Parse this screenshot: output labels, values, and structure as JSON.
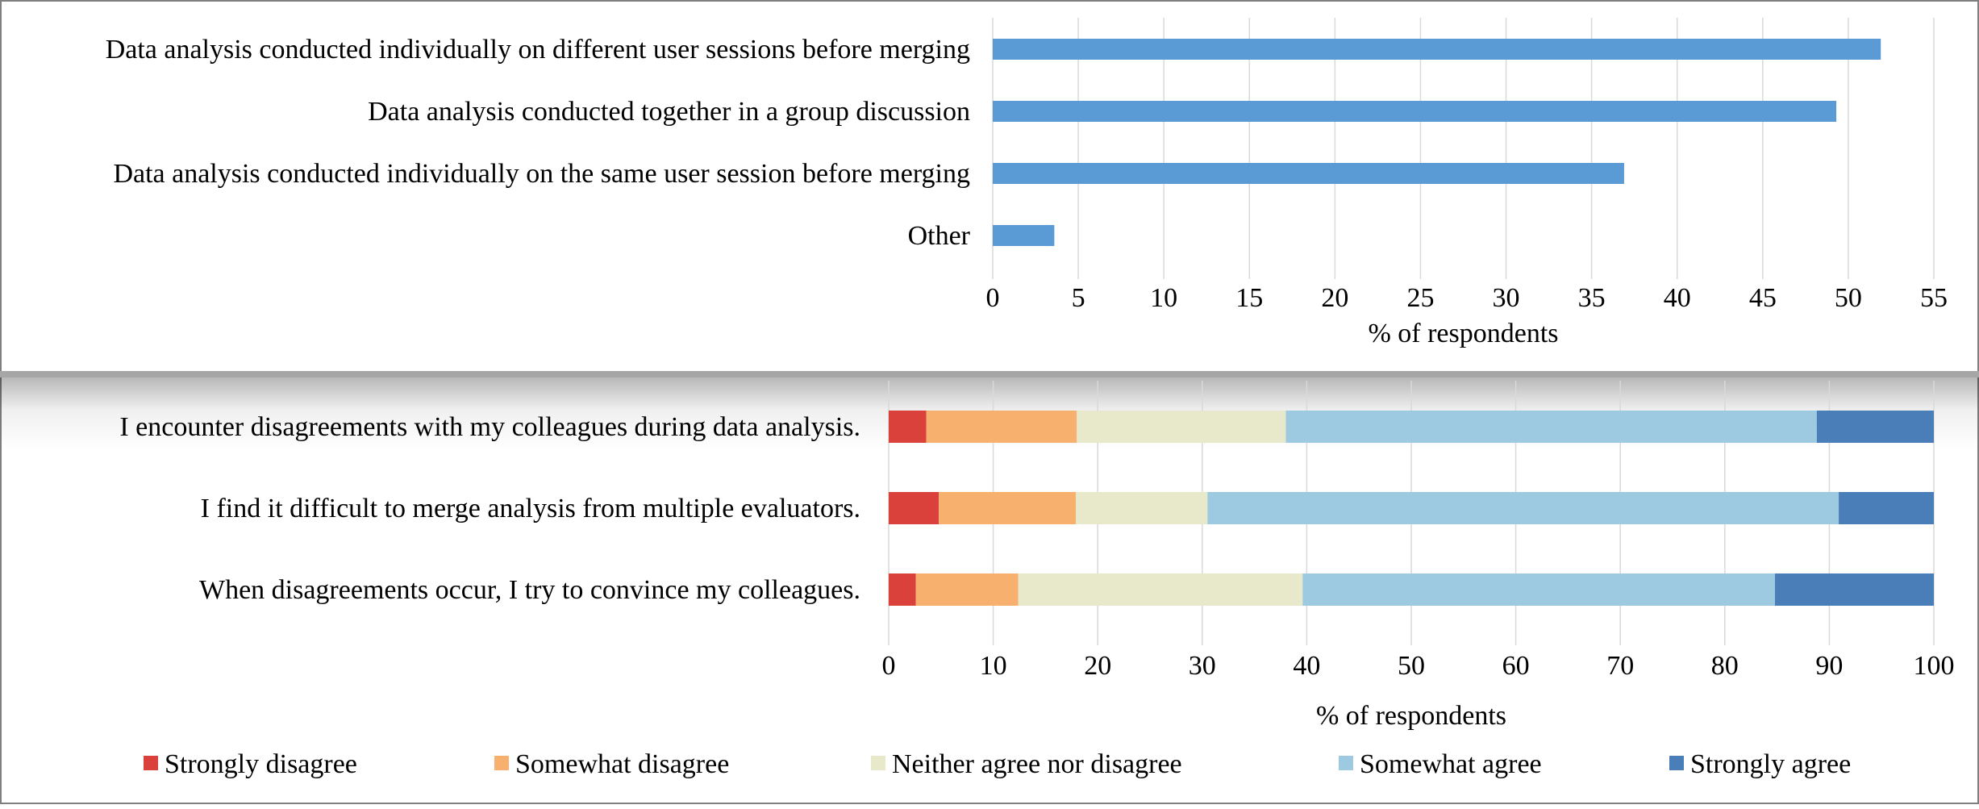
{
  "chart_data": [
    {
      "type": "bar",
      "orientation": "horizontal",
      "categories": [
        "Data analysis conducted individually on different user sessions before merging",
        "Data analysis conducted together in a group discussion",
        "Data analysis conducted individually on the same user session before merging",
        "Other"
      ],
      "values": [
        51.9,
        49.3,
        36.9,
        3.6
      ],
      "xlabel": "% of respondents",
      "xlim": [
        0,
        55
      ],
      "xticks": [
        "0",
        "5",
        "10",
        "15",
        "20",
        "25",
        "30",
        "35",
        "40",
        "45",
        "50",
        "55"
      ],
      "grid": true,
      "color": "#5b9bd5"
    },
    {
      "type": "bar",
      "orientation": "horizontal",
      "stacked": true,
      "categories": [
        "I encounter disagreements with my colleagues during data analysis.",
        "I find it difficult to merge analysis from multiple evaluators.",
        "When disagreements occur, I try to convince my colleagues."
      ],
      "series": [
        {
          "name": "Strongly disagree",
          "color": "#d9413a",
          "values": [
            3.6,
            4.8,
            2.6
          ]
        },
        {
          "name": "Somewhat disagree",
          "color": "#f8b06e",
          "values": [
            14.4,
            13.1,
            9.8
          ]
        },
        {
          "name": "Neither agree nor disagree",
          "color": "#e8e9cb",
          "values": [
            20.0,
            12.6,
            27.2
          ]
        },
        {
          "name": "Somewhat agree",
          "color": "#9ecae1",
          "values": [
            50.8,
            60.4,
            45.2
          ]
        },
        {
          "name": "Strongly agree",
          "color": "#4a7eb8",
          "values": [
            11.2,
            9.1,
            15.2
          ]
        }
      ],
      "xlabel": "% of respondents",
      "xlim": [
        0,
        100
      ],
      "xticks": [
        "0",
        "10",
        "20",
        "30",
        "40",
        "50",
        "60",
        "70",
        "80",
        "90",
        "100"
      ],
      "grid": true,
      "legend": "bottom"
    }
  ]
}
